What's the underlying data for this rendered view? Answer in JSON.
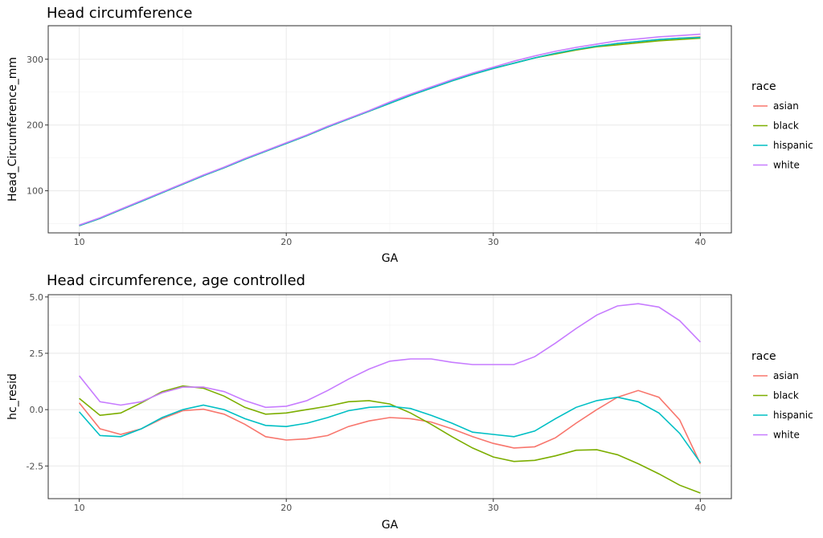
{
  "colors": {
    "asian": "#F8766D",
    "black": "#7CAE00",
    "hispanic": "#00BFC4",
    "white": "#C77CFF"
  },
  "chart_data": [
    {
      "type": "line",
      "title": "Head circumference",
      "xlabel": "GA",
      "ylabel": "Head_Circumference_mm",
      "xlim": [
        8.5,
        41.5
      ],
      "ylim": [
        36,
        351
      ],
      "xticks": [
        10,
        20,
        30,
        40
      ],
      "yticks": [
        100,
        200,
        300
      ],
      "grid": true,
      "legend": {
        "title": "race",
        "position": "right"
      },
      "x": [
        10,
        11,
        12,
        13,
        14,
        15,
        16,
        17,
        18,
        19,
        20,
        21,
        22,
        23,
        24,
        25,
        26,
        27,
        28,
        29,
        30,
        31,
        32,
        33,
        34,
        35,
        36,
        37,
        38,
        39,
        40
      ],
      "series": [
        {
          "name": "asian",
          "values": [
            47,
            58,
            71,
            84,
            97,
            110,
            123,
            135,
            148,
            160,
            172,
            184,
            197,
            209,
            221,
            233,
            245,
            256,
            267,
            277,
            286,
            294,
            302,
            309,
            315,
            320,
            324,
            327,
            330,
            332,
            334
          ]
        },
        {
          "name": "black",
          "values": [
            47,
            58,
            71,
            84,
            97,
            110,
            123,
            135,
            148,
            160,
            172,
            184,
            197,
            209,
            221,
            233,
            245,
            256,
            267,
            277,
            286,
            294,
            302,
            308,
            314,
            319,
            322,
            325,
            328,
            330,
            332
          ]
        },
        {
          "name": "hispanic",
          "values": [
            47,
            58,
            71,
            84,
            97,
            110,
            123,
            135,
            148,
            160,
            172,
            184,
            197,
            209,
            221,
            233,
            245,
            256,
            267,
            277,
            286,
            294,
            302,
            309,
            315,
            320,
            324,
            327,
            330,
            332,
            333
          ]
        },
        {
          "name": "white",
          "values": [
            48,
            59,
            72,
            85,
            98,
            111,
            124,
            136,
            149,
            161,
            173,
            185,
            198,
            210,
            222,
            235,
            247,
            258,
            269,
            279,
            288,
            297,
            305,
            312,
            318,
            323,
            328,
            331,
            334,
            336,
            338
          ]
        }
      ]
    },
    {
      "type": "line",
      "title": "Head circumference, age controlled",
      "xlabel": "GA",
      "ylabel": "hc_resid",
      "xlim": [
        8.5,
        41.5
      ],
      "ylim": [
        -3.95,
        5.1
      ],
      "xticks": [
        10,
        20,
        30,
        40
      ],
      "yticks": [
        5.0,
        2.5,
        0.0,
        -2.5
      ],
      "ytick_labels": [
        "5.0",
        "2.5",
        "0.0",
        "-2.5"
      ],
      "grid": true,
      "legend": {
        "title": "race",
        "position": "right"
      },
      "x": [
        10,
        11,
        12,
        13,
        14,
        15,
        16,
        17,
        18,
        19,
        20,
        21,
        22,
        23,
        24,
        25,
        26,
        27,
        28,
        29,
        30,
        31,
        32,
        33,
        34,
        35,
        36,
        37,
        38,
        39,
        40
      ],
      "series": [
        {
          "name": "asian",
          "values": [
            0.3,
            -0.85,
            -1.1,
            -0.85,
            -0.4,
            -0.05,
            0.02,
            -0.2,
            -0.65,
            -1.2,
            -1.35,
            -1.3,
            -1.15,
            -0.75,
            -0.5,
            -0.35,
            -0.4,
            -0.55,
            -0.85,
            -1.2,
            -1.5,
            -1.7,
            -1.65,
            -1.25,
            -0.6,
            0.0,
            0.55,
            0.85,
            0.55,
            -0.45,
            -2.4
          ]
        },
        {
          "name": "black",
          "values": [
            0.5,
            -0.25,
            -0.15,
            0.3,
            0.8,
            1.05,
            0.95,
            0.6,
            0.1,
            -0.2,
            -0.15,
            0.0,
            0.15,
            0.35,
            0.4,
            0.25,
            -0.15,
            -0.65,
            -1.2,
            -1.7,
            -2.1,
            -2.3,
            -2.25,
            -2.05,
            -1.8,
            -1.78,
            -2.0,
            -2.4,
            -2.85,
            -3.35,
            -3.7
          ]
        },
        {
          "name": "hispanic",
          "values": [
            -0.1,
            -1.15,
            -1.2,
            -0.85,
            -0.35,
            0.0,
            0.2,
            0.0,
            -0.4,
            -0.7,
            -0.75,
            -0.6,
            -0.35,
            -0.05,
            0.1,
            0.15,
            0.05,
            -0.25,
            -0.6,
            -1.0,
            -1.1,
            -1.2,
            -0.95,
            -0.4,
            0.1,
            0.4,
            0.55,
            0.35,
            -0.15,
            -1.05,
            -2.35
          ]
        },
        {
          "name": "white",
          "values": [
            1.5,
            0.35,
            0.2,
            0.35,
            0.75,
            1.0,
            1.0,
            0.8,
            0.4,
            0.1,
            0.15,
            0.4,
            0.85,
            1.35,
            1.8,
            2.15,
            2.25,
            2.25,
            2.1,
            2.0,
            2.0,
            2.0,
            2.35,
            2.95,
            3.6,
            4.2,
            4.6,
            4.7,
            4.55,
            3.95,
            3.0
          ]
        }
      ]
    }
  ]
}
